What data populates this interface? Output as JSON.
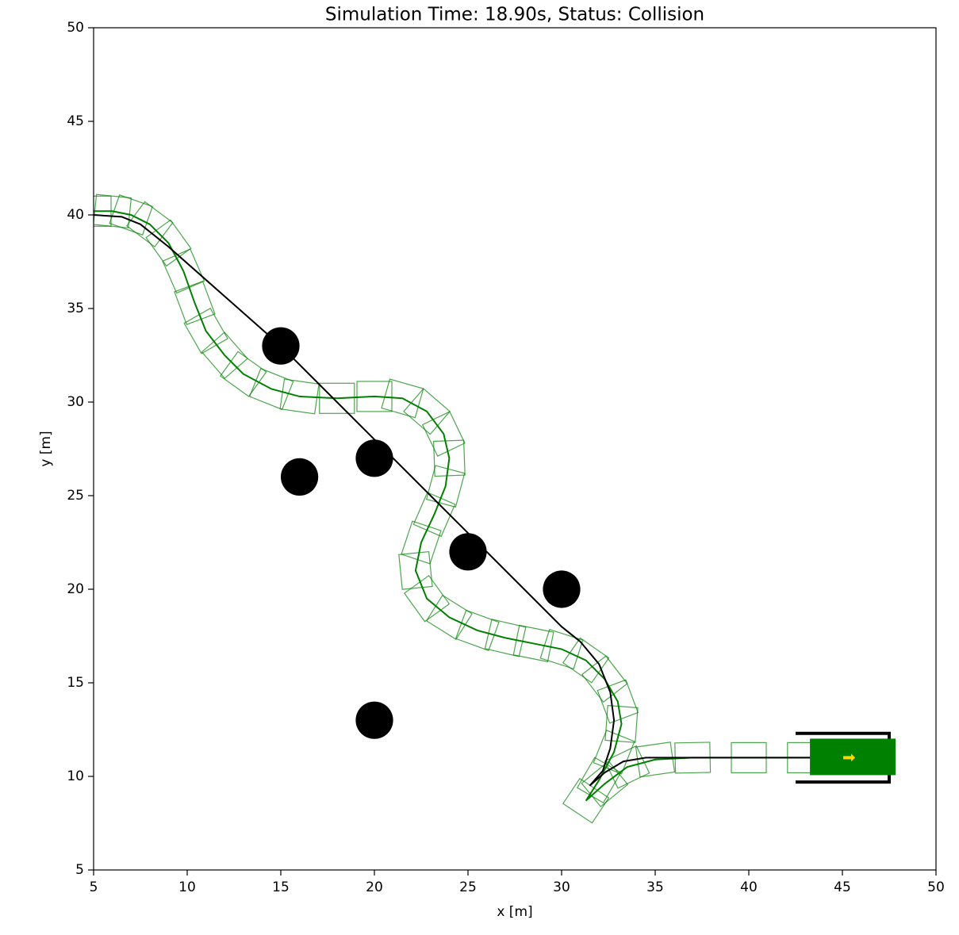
{
  "chart_data": {
    "type": "trajectory",
    "title": "Simulation Time: 18.90s, Status: Collision",
    "xlabel": "x [m]",
    "ylabel": "y [m]",
    "xlim": [
      5,
      50
    ],
    "ylim": [
      5,
      50
    ],
    "xticks": [
      5,
      10,
      15,
      20,
      25,
      30,
      35,
      40,
      45,
      50
    ],
    "yticks": [
      5,
      10,
      15,
      20,
      25,
      30,
      35,
      40,
      45,
      50
    ],
    "obstacles": {
      "color": "#000000",
      "radius": 1,
      "x": [
        15,
        16,
        20,
        25,
        30,
        20
      ],
      "y": [
        33,
        26,
        27,
        22,
        20,
        13
      ]
    },
    "reference_path": {
      "color": "#000000",
      "x": [
        5,
        6.5,
        7.5,
        9,
        15,
        20,
        25,
        30,
        31,
        32,
        32.6,
        32.8,
        32.6,
        32.2,
        31.5,
        32.3,
        33.3,
        34.5,
        36,
        40,
        44,
        47
      ],
      "y": [
        40,
        39.9,
        39.5,
        38.3,
        33,
        28,
        23,
        18,
        17.2,
        16,
        14.5,
        13,
        11.5,
        10.3,
        9.5,
        10.2,
        10.8,
        11,
        11,
        11,
        11,
        11
      ]
    },
    "trajectory": {
      "color": "#008000",
      "x": [
        5,
        6,
        7,
        8,
        9,
        9.8,
        10.4,
        11,
        12,
        13,
        14.5,
        16,
        18,
        20,
        21.5,
        22.8,
        23.7,
        24,
        23.8,
        23.2,
        22.5,
        22.2,
        22.8,
        24,
        25.5,
        27,
        28.5,
        30,
        31.3,
        32.3,
        33,
        33.2,
        32.8,
        32,
        31.3,
        32.3,
        33.5,
        35,
        37,
        40,
        43,
        45.3
      ],
      "y": [
        40.2,
        40.2,
        40,
        39.5,
        38.5,
        37,
        35.3,
        33.8,
        32.5,
        31.5,
        30.7,
        30.3,
        30.2,
        30.3,
        30.2,
        29.5,
        28.3,
        27,
        25.5,
        24,
        22.5,
        21,
        19.5,
        18.5,
        17.8,
        17.4,
        17.1,
        16.8,
        16.2,
        15.2,
        14,
        12.8,
        11.3,
        9.8,
        8.7,
        9.6,
        10.5,
        10.9,
        11,
        11,
        11,
        11
      ]
    },
    "parking_slot": {
      "color": "#000000",
      "x": [
        42.5,
        47.5,
        47.5,
        42.5
      ],
      "y": [
        12.3,
        12.3,
        9.7,
        9.7
      ]
    },
    "vehicle": {
      "color": "#008000",
      "x": 45.3,
      "y": 11
    }
  }
}
